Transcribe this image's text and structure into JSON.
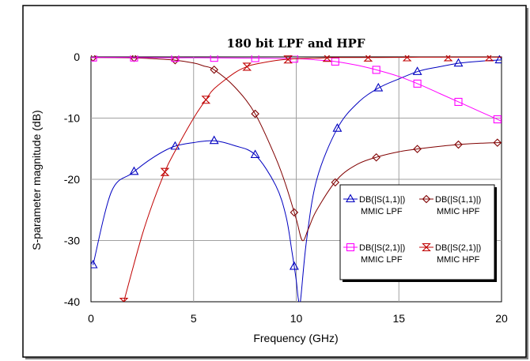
{
  "chart_data": {
    "type": "line",
    "title": "180 bit LPF and HPF",
    "xlabel": "Frequency (GHz)",
    "ylabel": "S-parameter magnitude (dB)",
    "xlim": [
      0,
      20
    ],
    "ylim": [
      -40,
      0
    ],
    "xticks": [
      "0",
      "5",
      "10",
      "15",
      "20"
    ],
    "yticks": [
      "0",
      "-10",
      "-20",
      "-30",
      "-40"
    ],
    "grid": true,
    "legend_placement": "lower-right",
    "series": [
      {
        "name": "DB(|S(1,1)|)",
        "name2": "MMIC LPF",
        "color": "#0000c0",
        "marker": "triangle-up",
        "x": [
          0.1,
          1,
          2,
          3,
          4,
          5,
          6,
          7,
          8,
          9,
          9.5,
          9.8,
          10,
          10.1,
          10.2,
          10.5,
          11,
          12,
          13,
          14,
          15,
          16,
          17,
          18,
          19,
          20
        ],
        "y": [
          -34,
          -22,
          -19,
          -16.5,
          -14.7,
          -14,
          -13.7,
          -14.5,
          -16,
          -21,
          -26,
          -32,
          -36.5,
          -39.5,
          -40,
          -30,
          -20,
          -11.7,
          -7.5,
          -5.1,
          -3.6,
          -2.3,
          -1.6,
          -1.0,
          -0.7,
          -0.5
        ],
        "marker_x": [
          0.1,
          2.1,
          4.1,
          6.0,
          8.0,
          9.9,
          12.0,
          14.0,
          15.9,
          17.9,
          19.9
        ]
      },
      {
        "name": "DB(|S(1,1)|)",
        "name2": "MMIC HPF",
        "color": "#800000",
        "marker": "diamond",
        "x": [
          0,
          2,
          3,
          4,
          5,
          5.5,
          6,
          7,
          8,
          9,
          9.5,
          10,
          10.3,
          10.6,
          11,
          12,
          13,
          14,
          15,
          16,
          17,
          18,
          19,
          20
        ],
        "y": [
          -0.1,
          -0.15,
          -0.3,
          -0.5,
          -1,
          -1.5,
          -2.1,
          -4.9,
          -9.3,
          -16.5,
          -21,
          -26.5,
          -30,
          -28,
          -25,
          -20,
          -17.5,
          -16.3,
          -15.5,
          -15,
          -14.6,
          -14.3,
          -14.1,
          -14
        ],
        "marker_x": [
          0.1,
          2.1,
          4.1,
          6.0,
          8.0,
          9.9,
          11.9,
          13.9,
          15.9,
          17.9,
          19.8
        ]
      },
      {
        "name": "DB(|S(2,1)|)",
        "name2": "MMIC LPF",
        "color": "#ff00ff",
        "marker": "square",
        "x": [
          0,
          2,
          4,
          6,
          8,
          10,
          11,
          12,
          13,
          14,
          15,
          16,
          17,
          18,
          19,
          20
        ],
        "y": [
          -0.1,
          -0.1,
          -0.15,
          -0.15,
          -0.2,
          -0.3,
          -0.5,
          -0.8,
          -1.4,
          -2.2,
          -3.2,
          -4.5,
          -6,
          -7.5,
          -9,
          -10.5
        ],
        "marker_x": [
          0.1,
          2.1,
          4.1,
          6.0,
          8.0,
          9.9,
          11.9,
          13.9,
          15.9,
          17.9,
          19.8
        ]
      },
      {
        "name": "DB(|S(2,1)|)",
        "name2": "MMIC HPF",
        "color": "#c00000",
        "marker": "hourglass",
        "x": [
          1.6,
          2,
          2.5,
          3,
          3.6,
          4,
          5,
          5.6,
          6,
          7,
          7.6,
          8,
          9,
          10,
          11,
          12,
          14,
          16,
          18,
          20
        ],
        "y": [
          -40,
          -35,
          -29,
          -24,
          -18.8,
          -16,
          -10,
          -7,
          -5.2,
          -2.6,
          -1.6,
          -1.2,
          -0.6,
          -0.3,
          -0.2,
          -0.1,
          -0.1,
          -0.05,
          -0.05,
          -0.05
        ],
        "marker_x": [
          1.6,
          3.6,
          5.6,
          7.6,
          9.6,
          11.5,
          13.5,
          15.4,
          17.4,
          19.4
        ]
      }
    ]
  }
}
